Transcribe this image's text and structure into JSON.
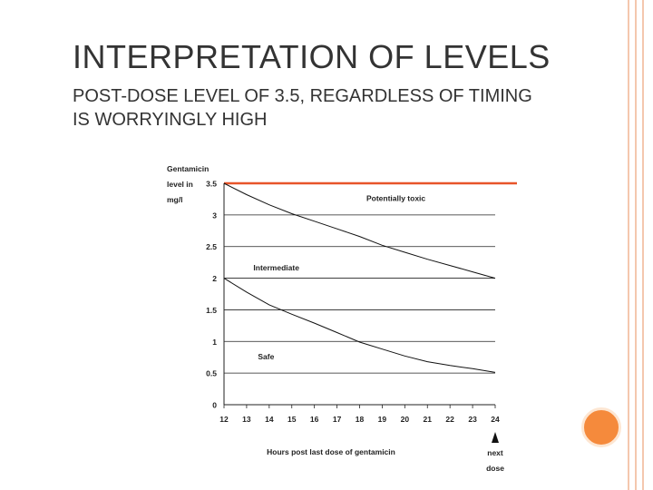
{
  "slide": {
    "title": "INTERPRETATION OF LEVELS",
    "subtitle_line1": "POST-DOSE LEVEL OF 3.5, REGARDLESS OF TIMING",
    "subtitle_line2": "IS WORRYINGLY HIGH",
    "colors": {
      "border": "#f4c7ae",
      "accent": "#f58a3c",
      "toxic_line": "#e8552a"
    }
  },
  "chart_data": {
    "type": "line",
    "ylabel_lines": [
      "Gentamicin",
      "level in",
      "mg/l"
    ],
    "xlabel": "Hours post last dose of gentamicin",
    "next_dose_lines": [
      "next",
      "dose"
    ],
    "x_ticks": [
      "12",
      "13",
      "14",
      "15",
      "16",
      "17",
      "18",
      "19",
      "20",
      "21",
      "22",
      "23",
      "24"
    ],
    "y_ticks": [
      "0",
      "0.5",
      "1",
      "1.5",
      "2",
      "2.5",
      "3",
      "3.5"
    ],
    "xlim": [
      12,
      24
    ],
    "ylim": [
      0,
      3.5
    ],
    "grid": true,
    "region_labels": [
      {
        "text": "Potentially toxic",
        "x": 18.3,
        "y": 3.22
      },
      {
        "text": "Intermediate",
        "x": 13.3,
        "y": 2.12
      },
      {
        "text": "Safe",
        "x": 13.5,
        "y": 0.72
      }
    ],
    "toxic_threshold": 3.5,
    "series": [
      {
        "x": [
          12,
          13,
          14,
          15,
          16,
          17,
          18,
          19,
          20,
          21,
          22,
          23,
          24
        ],
        "values": [
          3.5,
          3.32,
          3.16,
          3.02,
          2.9,
          2.78,
          2.66,
          2.52,
          2.41,
          2.3,
          2.2,
          2.1,
          2.0
        ]
      },
      {
        "x": [
          12,
          13,
          14,
          15,
          16,
          17,
          18,
          19,
          20,
          21,
          22,
          23,
          24
        ],
        "values": [
          2.0,
          1.78,
          1.58,
          1.43,
          1.29,
          1.14,
          0.99,
          0.88,
          0.77,
          0.68,
          0.62,
          0.57,
          0.51
        ]
      }
    ]
  }
}
